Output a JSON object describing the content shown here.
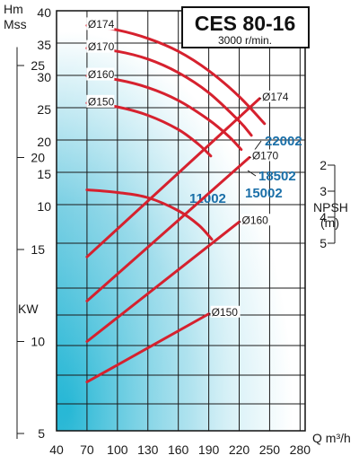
{
  "chart_data": {
    "type": "line",
    "title": "CES 80-16",
    "subtitle": "3000 r/min.",
    "xlabel": "Q m³/h",
    "x_ticks": [
      40,
      70,
      100,
      130,
      160,
      190,
      220,
      250,
      280
    ],
    "xlim": [
      40,
      285
    ],
    "head": {
      "ylabel_1": "Hm",
      "ylabel_2": "Mss",
      "y_ticks": [
        10,
        15,
        20,
        25,
        30,
        35,
        40
      ],
      "ylim": [
        5,
        40
      ],
      "series": [
        {
          "name": "Ø174",
          "points": [
            [
              70,
              38.0
            ],
            [
              100,
              37.3
            ],
            [
              130,
              36.0
            ],
            [
              160,
              34.0
            ],
            [
              190,
              31.0
            ],
            [
              220,
              27.0
            ],
            [
              245,
              22.8
            ]
          ]
        },
        {
          "name": "Ø170",
          "points": [
            [
              70,
              34.5
            ],
            [
              100,
              34.0
            ],
            [
              130,
              32.8
            ],
            [
              160,
              30.7
            ],
            [
              190,
              27.6
            ],
            [
              220,
              23.2
            ],
            [
              232,
              21.0
            ]
          ]
        },
        {
          "name": "Ø160",
          "points": [
            [
              70,
              30.2
            ],
            [
              100,
              29.6
            ],
            [
              130,
              28.4
            ],
            [
              160,
              26.4
            ],
            [
              190,
              23.4
            ],
            [
              210,
              20.8
            ],
            [
              222,
              18.8
            ]
          ]
        },
        {
          "name": "Ø150",
          "points": [
            [
              70,
              26.0
            ],
            [
              100,
              25.4
            ],
            [
              130,
              24.1
            ],
            [
              160,
              21.9
            ],
            [
              180,
              19.6
            ],
            [
              192,
              17.8
            ]
          ]
        }
      ],
      "models": [
        "22002",
        "18502",
        "15002",
        "11002"
      ]
    },
    "npsh": {
      "ylabel_1": "NPSH",
      "ylabel_2": "(m)",
      "y_ticks": [
        2,
        3,
        4,
        5
      ],
      "curve": [
        [
          70,
          2.95
        ],
        [
          100,
          3.05
        ],
        [
          130,
          3.25
        ],
        [
          160,
          3.75
        ],
        [
          180,
          4.3
        ],
        [
          193,
          4.85
        ]
      ]
    },
    "power": {
      "ylabel": "KW",
      "y_ticks": [
        5,
        10,
        15,
        20,
        25
      ],
      "ylim": [
        5,
        26
      ],
      "series": [
        {
          "name": "Ø174",
          "points": [
            [
              70,
              14.6
            ],
            [
              240,
              23.2
            ]
          ]
        },
        {
          "name": "Ø170",
          "points": [
            [
              70,
              12.2
            ],
            [
              230,
              20.0
            ]
          ]
        },
        {
          "name": "Ø160",
          "points": [
            [
              70,
              10.0
            ],
            [
              220,
              16.5
            ]
          ]
        },
        {
          "name": "Ø150",
          "points": [
            [
              70,
              7.8
            ],
            [
              190,
              11.5
            ]
          ]
        }
      ]
    }
  }
}
